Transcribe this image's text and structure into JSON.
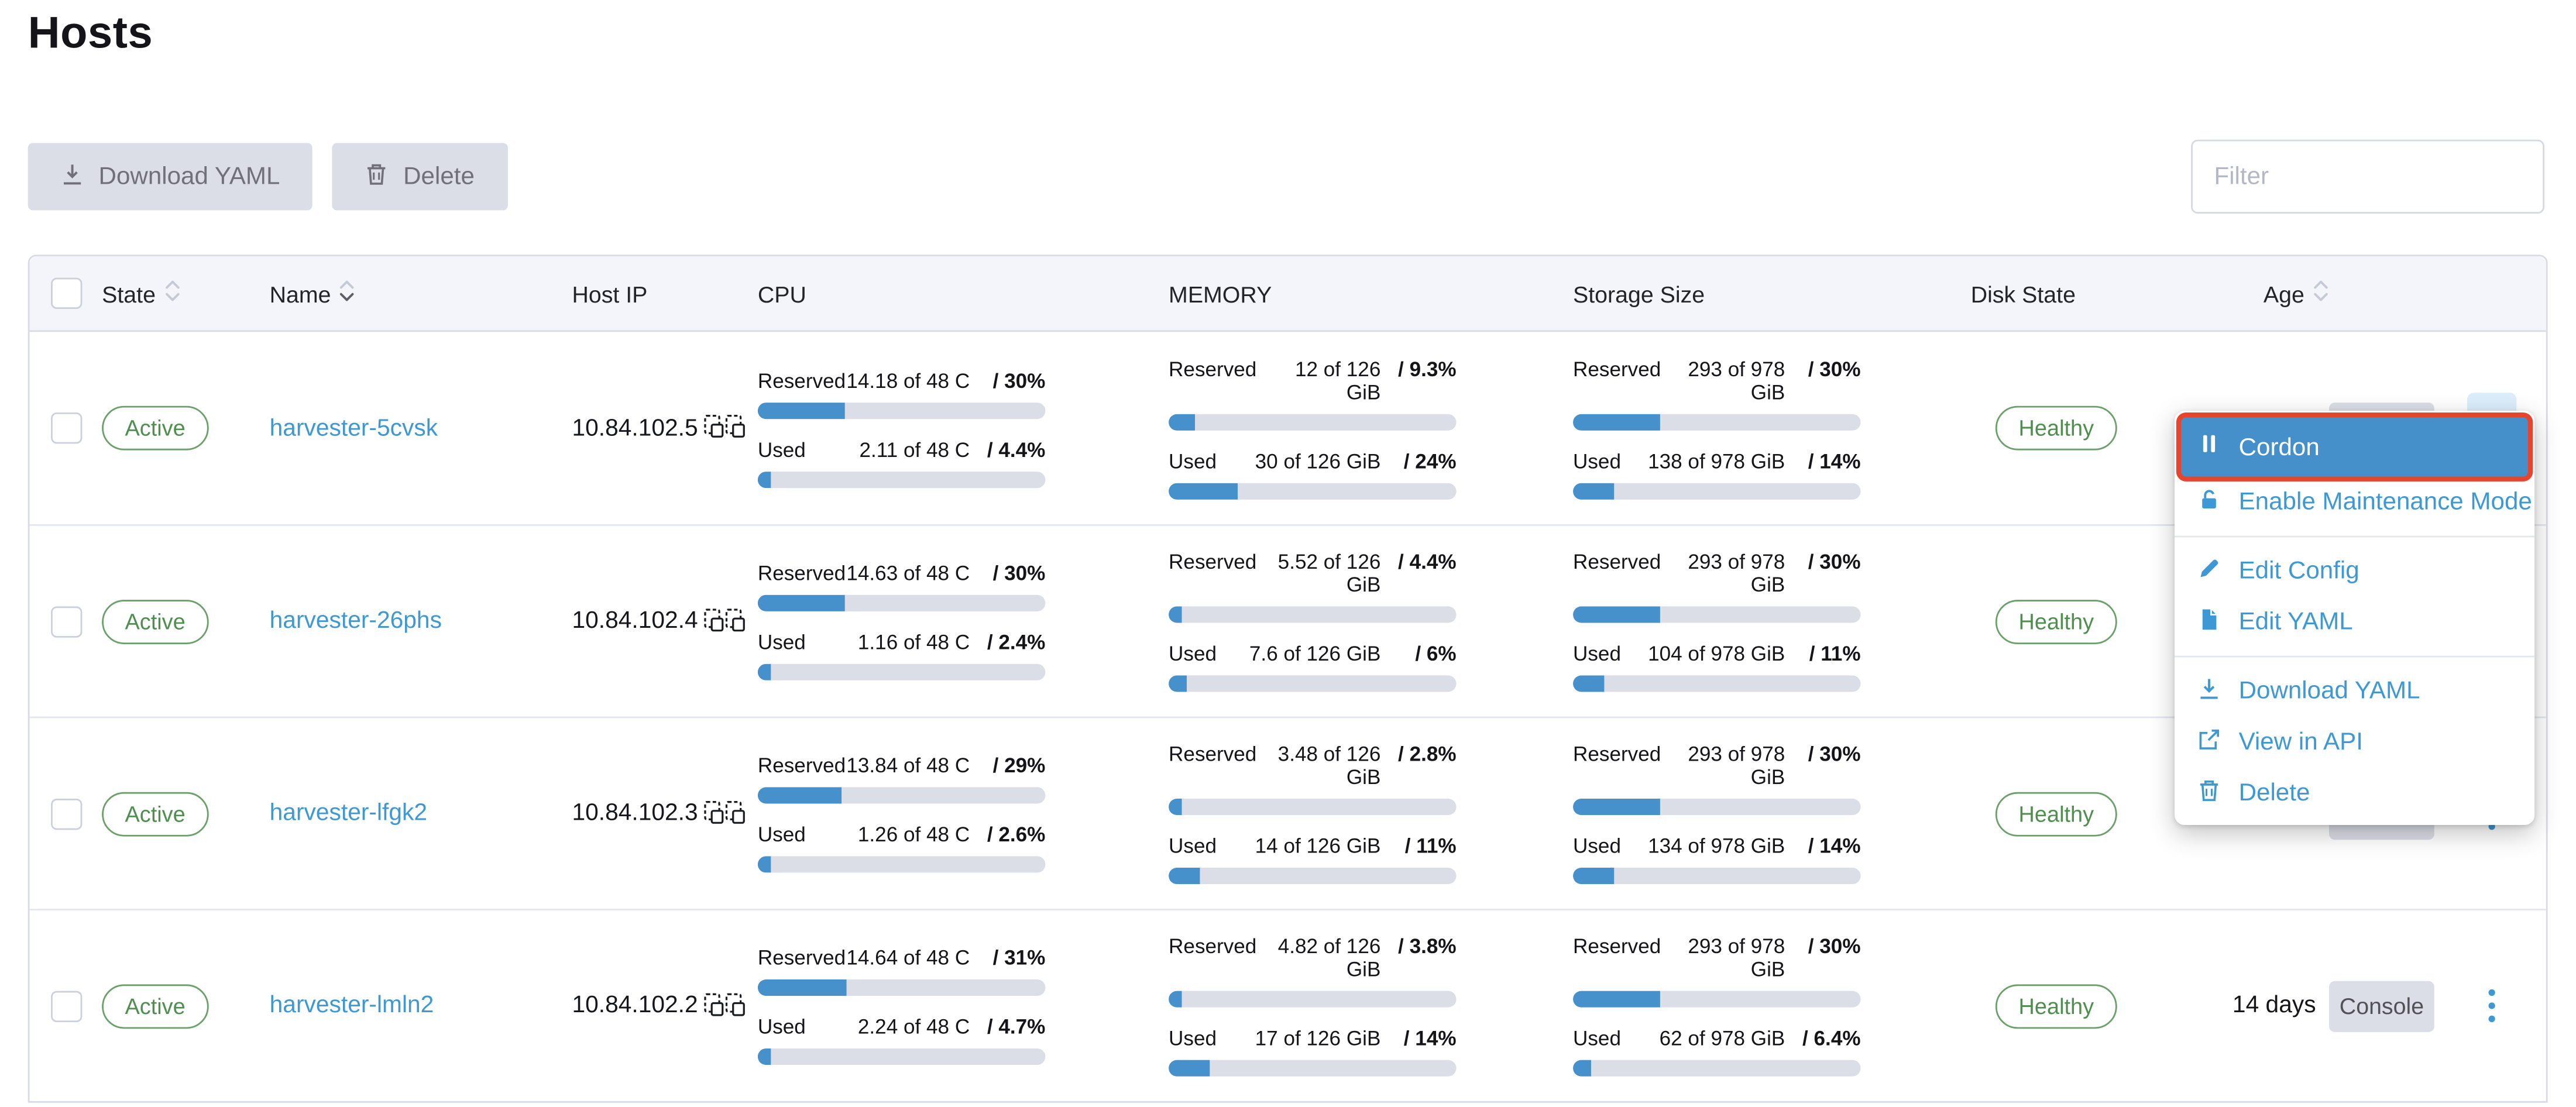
{
  "title": "Hosts",
  "toolbar": {
    "download_yaml": "Download YAML",
    "delete": "Delete"
  },
  "filter": {
    "placeholder": "Filter"
  },
  "table": {
    "headers": [
      {
        "key": "state",
        "label": "State",
        "sortable": true,
        "sort": "none"
      },
      {
        "key": "name",
        "label": "Name",
        "sortable": true,
        "sort": "desc"
      },
      {
        "key": "host-ip",
        "label": "Host IP",
        "sortable": false
      },
      {
        "key": "cpu",
        "label": "CPU",
        "sortable": false
      },
      {
        "key": "memory",
        "label": "MEMORY",
        "sortable": false
      },
      {
        "key": "storage-size",
        "label": "Storage Size",
        "sortable": false
      },
      {
        "key": "disk-state",
        "label": "Disk State",
        "sortable": false
      },
      {
        "key": "age",
        "label": "Age",
        "sortable": true,
        "sort": "none"
      }
    ],
    "metric_labels": {
      "reserved": "Reserved",
      "used": "Used"
    },
    "console_label": "Console",
    "rows": [
      {
        "state": "Active",
        "name": "harvester-5cvsk",
        "host_ip": "10.84.102.5",
        "cpu_reserved": "14.18 of 48 C",
        "cpu_reserved_pct": "/ 30%",
        "cpu_reserved_val": 30,
        "cpu_used": "2.11 of 48 C",
        "cpu_used_pct": "/ 4.4%",
        "cpu_used_val": 4.4,
        "mem_reserved": "12 of 126 GiB",
        "mem_reserved_pct": "/ 9.3%",
        "mem_reserved_val": 9.3,
        "mem_used": "30 of 126 GiB",
        "mem_used_pct": "/ 24%",
        "mem_used_val": 24,
        "sto_reserved": "293 of 978 GiB",
        "sto_reserved_pct": "/ 30%",
        "sto_reserved_val": 30,
        "sto_used": "138 of 978 GiB",
        "sto_used_pct": "/ 14%",
        "sto_used_val": 14,
        "disk_state": "Healthy",
        "age": "",
        "kebab_active": true
      },
      {
        "state": "Active",
        "name": "harvester-26phs",
        "host_ip": "10.84.102.4",
        "cpu_reserved": "14.63 of 48 C",
        "cpu_reserved_pct": "/ 30%",
        "cpu_reserved_val": 30,
        "cpu_used": "1.16 of 48 C",
        "cpu_used_pct": "/ 2.4%",
        "cpu_used_val": 2.4,
        "mem_reserved": "5.52 of 126 GiB",
        "mem_reserved_pct": "/ 4.4%",
        "mem_reserved_val": 4.4,
        "mem_used": "7.6 of 126 GiB",
        "mem_used_pct": "/ 6%",
        "mem_used_val": 6,
        "sto_reserved": "293 of 978 GiB",
        "sto_reserved_pct": "/ 30%",
        "sto_reserved_val": 30,
        "sto_used": "104 of 978 GiB",
        "sto_used_pct": "/ 11%",
        "sto_used_val": 11,
        "disk_state": "Healthy",
        "age": "",
        "kebab_active": false
      },
      {
        "state": "Active",
        "name": "harvester-lfgk2",
        "host_ip": "10.84.102.3",
        "cpu_reserved": "13.84 of 48 C",
        "cpu_reserved_pct": "/ 29%",
        "cpu_reserved_val": 29,
        "cpu_used": "1.26 of 48 C",
        "cpu_used_pct": "/ 2.6%",
        "cpu_used_val": 2.6,
        "mem_reserved": "3.48 of 126 GiB",
        "mem_reserved_pct": "/ 2.8%",
        "mem_reserved_val": 2.8,
        "mem_used": "14 of 126 GiB",
        "mem_used_pct": "/ 11%",
        "mem_used_val": 11,
        "sto_reserved": "293 of 978 GiB",
        "sto_reserved_pct": "/ 30%",
        "sto_reserved_val": 30,
        "sto_used": "134 of 978 GiB",
        "sto_used_pct": "/ 14%",
        "sto_used_val": 14,
        "disk_state": "Healthy",
        "age": "",
        "kebab_active": false
      },
      {
        "state": "Active",
        "name": "harvester-lmln2",
        "host_ip": "10.84.102.2",
        "cpu_reserved": "14.64 of 48 C",
        "cpu_reserved_pct": "/ 31%",
        "cpu_reserved_val": 31,
        "cpu_used": "2.24 of 48 C",
        "cpu_used_pct": "/ 4.7%",
        "cpu_used_val": 4.7,
        "mem_reserved": "4.82 of 126 GiB",
        "mem_reserved_pct": "/ 3.8%",
        "mem_reserved_val": 3.8,
        "mem_used": "17 of 126 GiB",
        "mem_used_pct": "/ 14%",
        "mem_used_val": 14,
        "sto_reserved": "293 of 978 GiB",
        "sto_reserved_pct": "/ 30%",
        "sto_reserved_val": 30,
        "sto_used": "62 of 978 GiB",
        "sto_used_pct": "/ 6.4%",
        "sto_used_val": 6.4,
        "disk_state": "Healthy",
        "age": "14 days",
        "kebab_active": false
      }
    ]
  },
  "context_menu": {
    "items": [
      {
        "icon": "pause-icon",
        "label": "Cordon",
        "active": true,
        "annotated": true
      },
      {
        "icon": "unlock-icon",
        "label": "Enable Maintenance Mode"
      },
      {
        "divider": true
      },
      {
        "icon": "pencil-icon",
        "label": "Edit Config"
      },
      {
        "icon": "file-icon",
        "label": "Edit YAML"
      },
      {
        "divider": true
      },
      {
        "icon": "download-icon",
        "label": "Download YAML"
      },
      {
        "icon": "external-link-icon",
        "label": "View in API"
      },
      {
        "icon": "trash-icon",
        "label": "Delete"
      }
    ]
  },
  "colors": {
    "primary": "#3d98d3",
    "bar_fill": "#4691cb",
    "bar_track": "#dcdee7",
    "success_green": "#4e8f4e",
    "annotation_red": "#e8432d",
    "menu_active_bg": "#4590ca",
    "header_bg": "#f4f5fa",
    "disabled_btn_bg": "#dcdee7"
  }
}
